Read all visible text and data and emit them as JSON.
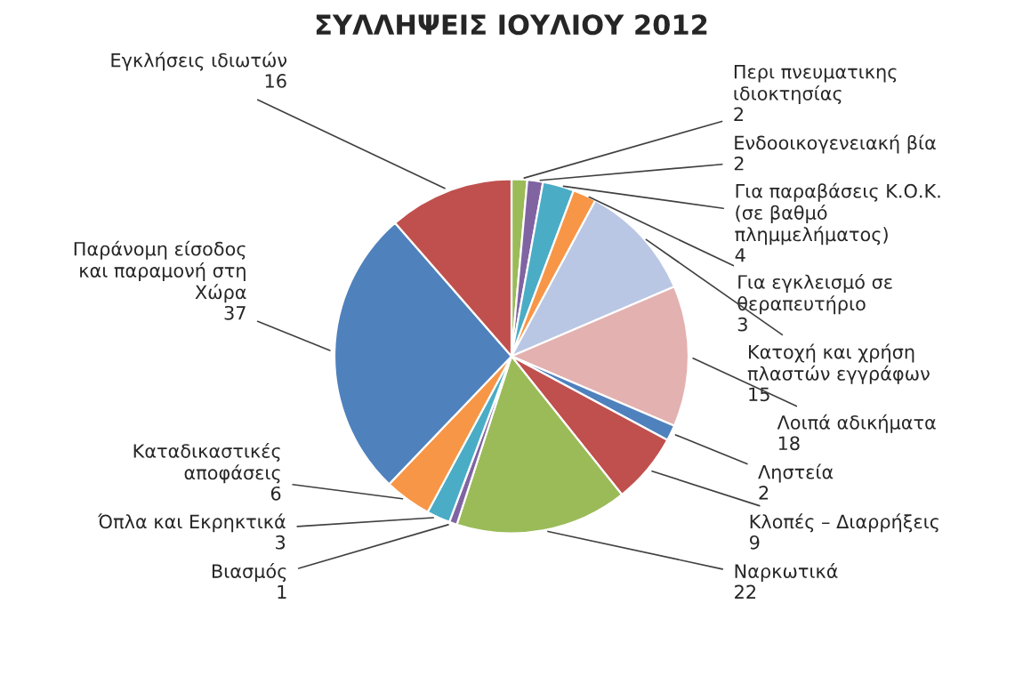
{
  "chart_data": {
    "type": "pie",
    "title": "ΣΥΛΛΗΨΕΙΣ ΙΟΥΛΙΟΥ 2012",
    "categories": [
      "Περι πνευματικης\nιδιοκτησίας",
      "Ενδοοικογενειακή βία",
      "Για παραβάσεις Κ.Ο.Κ.\n(σε βαθμό\nπλημμελήματος)",
      "Για εγκλεισμό σε\nθεραπευτήριο",
      "Κατοχή και χρήση\nπλαστών εγγράφων",
      "Λοιπά αδικήματα",
      "Ληστεία",
      "Κλοπές – Διαρρήξεις",
      "Ναρκωτικά",
      "Βιασμός",
      "Όπλα και Εκρηκτικά",
      "Καταδικαστικές\nαποφάσεις",
      "Παράνομη είσοδος\nκαι παραμονή στη\nΧώρα",
      "Εγκλήσεις ιδιωτών"
    ],
    "values": [
      2,
      2,
      4,
      3,
      15,
      18,
      2,
      9,
      22,
      1,
      3,
      6,
      37,
      16
    ],
    "colors": [
      "#9bbb59",
      "#8064a2",
      "#4bacc6",
      "#f79646",
      "#b9c7e4",
      "#e3b1b0",
      "#4f81bd",
      "#c0504d",
      "#9bbb59",
      "#8064a2",
      "#4bacc6",
      "#f79646",
      "#4f81bd",
      "#c0504d"
    ],
    "data_labels": true
  }
}
